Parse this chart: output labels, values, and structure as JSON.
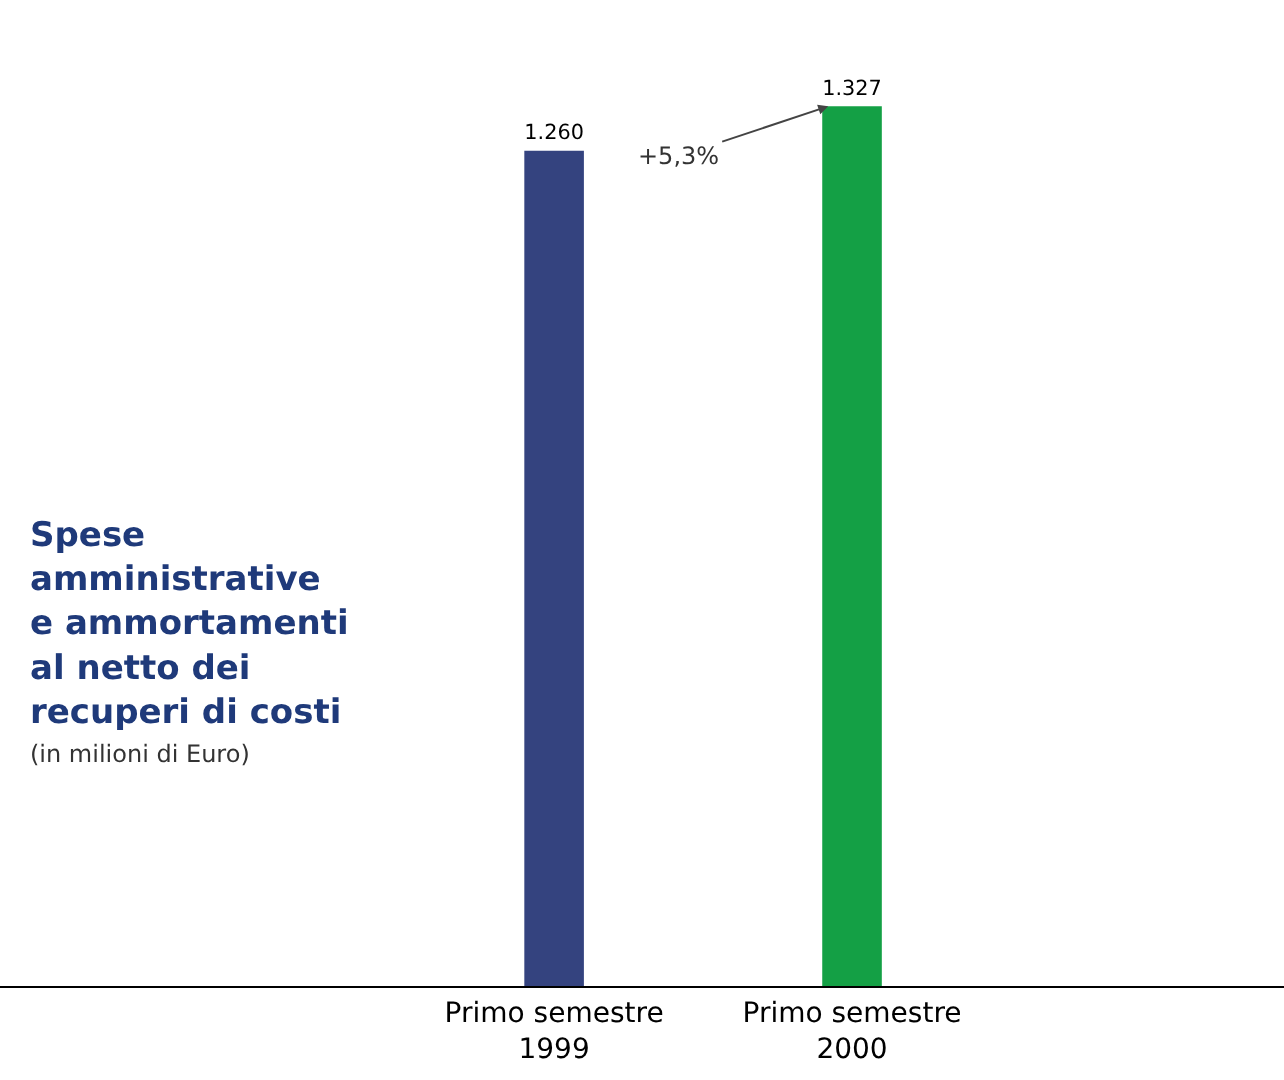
{
  "chart_data": {
    "type": "bar",
    "title": "Spese amministrative e ammortamenti al netto dei recuperi di costi",
    "subtitle": "(in milioni di Euro)",
    "categories": [
      "Primo semestre 1999",
      "Primo semestre 2000"
    ],
    "values": [
      1260,
      1327
    ],
    "value_labels": [
      "1.260",
      "1.327"
    ],
    "colors": [
      "#34437f",
      "#14a045"
    ],
    "annotations": [
      "+5,3%"
    ]
  }
}
